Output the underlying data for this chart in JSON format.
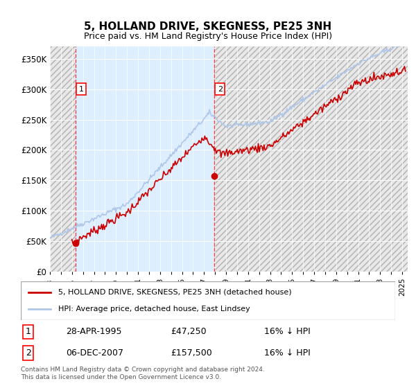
{
  "title": "5, HOLLAND DRIVE, SKEGNESS, PE25 3NH",
  "subtitle": "Price paid vs. HM Land Registry's House Price Index (HPI)",
  "ylim": [
    0,
    370000
  ],
  "yticks": [
    0,
    50000,
    100000,
    150000,
    200000,
    250000,
    300000,
    350000
  ],
  "ytick_labels": [
    "£0",
    "£50K",
    "£100K",
    "£150K",
    "£200K",
    "£250K",
    "£300K",
    "£350K"
  ],
  "xlim_start": 1993.0,
  "xlim_end": 2025.5,
  "hpi_color": "#aec6e8",
  "price_color": "#cc0000",
  "sale1_date": 1995.32,
  "sale1_price": 47250,
  "sale2_date": 2007.92,
  "sale2_price": 157500,
  "legend_line1": "5, HOLLAND DRIVE, SKEGNESS, PE25 3NH (detached house)",
  "legend_line2": "HPI: Average price, detached house, East Lindsey",
  "table_row1": [
    "1",
    "28-APR-1995",
    "£47,250",
    "16% ↓ HPI"
  ],
  "table_row2": [
    "2",
    "06-DEC-2007",
    "£157,500",
    "16% ↓ HPI"
  ],
  "footnote": "Contains HM Land Registry data © Crown copyright and database right 2024.\nThis data is licensed under the Open Government Licence v3.0.",
  "bg_hatch_color": "#d0d0d0",
  "plot_bg_color": "#ddeeff",
  "hatch_bg_color": "#e8e8e8"
}
